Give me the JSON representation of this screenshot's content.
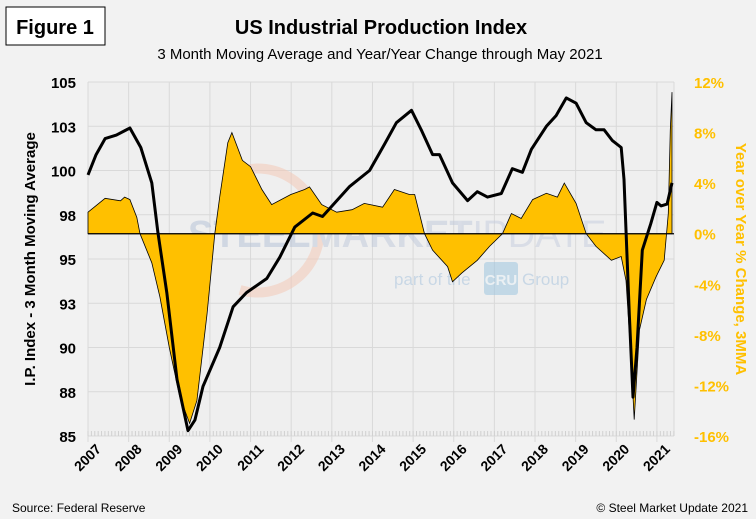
{
  "figure_label": "Figure 1",
  "source": "Source: Federal Reserve",
  "copyright": "© Steel Market Update 2021",
  "watermark": {
    "line1a": "STEEL",
    "line1b": "MARKET",
    "line1c": "UPDATE",
    "line2a": "part of the",
    "logo": "CRU",
    "line2b": "Group"
  },
  "colors": {
    "index_line": "#000000",
    "yoy_area": "#ffc000",
    "right_axis_text": "#ffc000",
    "background": "#f2f2f2",
    "plot_background": "#efefef",
    "grid": "#d9d9d9"
  },
  "chart_data": {
    "type": "line+area",
    "title": "US Industrial Production  Index",
    "subtitle": "3 Month Moving Average and Year/Year Change through May 2021",
    "ylabel": "I.P. Index - 3 Month Moving Average",
    "y2label": "Year over Year % Change, 3MMA",
    "xlim": [
      2007,
      2021.42
    ],
    "ylim": [
      85,
      105
    ],
    "y2lim": [
      -16,
      12
    ],
    "grid": true,
    "x_ticks": [
      "2007",
      "2008",
      "2009",
      "2010",
      "2011",
      "2012",
      "2013",
      "2014",
      "2015",
      "2016",
      "2017",
      "2018",
      "2019",
      "2020",
      "2021"
    ],
    "y_ticks": [
      "105",
      "103",
      "100",
      "98",
      "95",
      "93",
      "90",
      "88",
      "85"
    ],
    "y2_ticks": [
      "12%",
      "8%",
      "4%",
      "0%",
      "-4%",
      "-8%",
      "-12%",
      "-16%"
    ],
    "series": [
      {
        "axis": "left",
        "style": "line",
        "points": [
          [
            2007.0,
            99.75
          ],
          [
            2007.2,
            100.9
          ],
          [
            2007.42,
            101.8
          ],
          [
            2007.7,
            102.0
          ],
          [
            2008.03,
            102.4
          ],
          [
            2008.3,
            101.3
          ],
          [
            2008.57,
            99.3
          ],
          [
            2008.72,
            96.5
          ],
          [
            2008.94,
            93.1
          ],
          [
            2009.19,
            88.2
          ],
          [
            2009.46,
            85.3
          ],
          [
            2009.63,
            85.9
          ],
          [
            2009.83,
            87.8
          ],
          [
            2010.24,
            90.0
          ],
          [
            2010.57,
            92.3
          ],
          [
            2010.9,
            93.1
          ],
          [
            2011.4,
            93.9
          ],
          [
            2011.72,
            95.1
          ],
          [
            2012.09,
            96.8
          ],
          [
            2012.53,
            97.6
          ],
          [
            2012.77,
            97.4
          ],
          [
            2013.44,
            99.1
          ],
          [
            2013.93,
            100.0
          ],
          [
            2014.3,
            101.5
          ],
          [
            2014.59,
            102.7
          ],
          [
            2014.96,
            103.4
          ],
          [
            2015.2,
            102.3
          ],
          [
            2015.48,
            100.9
          ],
          [
            2015.65,
            100.9
          ],
          [
            2015.97,
            99.3
          ],
          [
            2016.34,
            98.3
          ],
          [
            2016.58,
            98.8
          ],
          [
            2016.83,
            98.5
          ],
          [
            2017.17,
            98.7
          ],
          [
            2017.44,
            100.1
          ],
          [
            2017.69,
            99.9
          ],
          [
            2017.91,
            101.2
          ],
          [
            2018.28,
            102.5
          ],
          [
            2018.52,
            103.1
          ],
          [
            2018.77,
            104.1
          ],
          [
            2019.01,
            103.8
          ],
          [
            2019.26,
            102.7
          ],
          [
            2019.5,
            102.3
          ],
          [
            2019.7,
            102.3
          ],
          [
            2019.9,
            101.7
          ],
          [
            2020.12,
            101.3
          ],
          [
            2020.19,
            99.5
          ],
          [
            2020.32,
            91.9
          ],
          [
            2020.41,
            87.2
          ],
          [
            2020.51,
            90.0
          ],
          [
            2020.64,
            95.5
          ],
          [
            2020.85,
            97.0
          ],
          [
            2021.0,
            98.2
          ],
          [
            2021.1,
            98.0
          ],
          [
            2021.25,
            98.1
          ],
          [
            2021.37,
            99.3
          ]
        ]
      },
      {
        "axis": "right",
        "style": "area",
        "points": [
          [
            2007.0,
            1.7
          ],
          [
            2007.42,
            2.8
          ],
          [
            2007.8,
            2.6
          ],
          [
            2007.9,
            2.9
          ],
          [
            2008.03,
            2.7
          ],
          [
            2008.2,
            1.3
          ],
          [
            2008.28,
            0.0
          ],
          [
            2008.57,
            -2.3
          ],
          [
            2008.77,
            -5.0
          ],
          [
            2009.0,
            -9.0
          ],
          [
            2009.26,
            -12.9
          ],
          [
            2009.5,
            -15.0
          ],
          [
            2009.68,
            -13.2
          ],
          [
            2009.93,
            -6.3
          ],
          [
            2010.12,
            0.0
          ],
          [
            2010.24,
            2.9
          ],
          [
            2010.44,
            7.2
          ],
          [
            2010.54,
            8.0
          ],
          [
            2010.8,
            5.8
          ],
          [
            2011.0,
            5.3
          ],
          [
            2011.28,
            3.5
          ],
          [
            2011.52,
            2.3
          ],
          [
            2011.99,
            3.1
          ],
          [
            2012.33,
            3.5
          ],
          [
            2012.45,
            3.7
          ],
          [
            2012.75,
            2.3
          ],
          [
            2013.12,
            1.7
          ],
          [
            2013.5,
            1.9
          ],
          [
            2013.8,
            2.4
          ],
          [
            2014.25,
            2.1
          ],
          [
            2014.54,
            3.5
          ],
          [
            2014.91,
            3.1
          ],
          [
            2015.04,
            3.1
          ],
          [
            2015.28,
            0.0
          ],
          [
            2015.48,
            -1.3
          ],
          [
            2015.85,
            -2.6
          ],
          [
            2015.97,
            -3.8
          ],
          [
            2016.2,
            -3.1
          ],
          [
            2016.58,
            -2.1
          ],
          [
            2016.88,
            -1.0
          ],
          [
            2017.2,
            0.0
          ],
          [
            2017.42,
            1.6
          ],
          [
            2017.66,
            1.2
          ],
          [
            2017.94,
            2.7
          ],
          [
            2018.28,
            3.2
          ],
          [
            2018.55,
            2.9
          ],
          [
            2018.72,
            4.0
          ],
          [
            2019.01,
            2.4
          ],
          [
            2019.26,
            0.0
          ],
          [
            2019.5,
            -1.0
          ],
          [
            2019.88,
            -2.1
          ],
          [
            2020.12,
            -1.8
          ],
          [
            2020.24,
            -3.7
          ],
          [
            2020.37,
            -10.2
          ],
          [
            2020.44,
            -14.7
          ],
          [
            2020.57,
            -7.6
          ],
          [
            2020.74,
            -5.2
          ],
          [
            2020.98,
            -3.4
          ],
          [
            2021.18,
            -2.1
          ],
          [
            2021.28,
            1.6
          ],
          [
            2021.33,
            8.2
          ],
          [
            2021.37,
            11.2
          ]
        ]
      }
    ]
  }
}
